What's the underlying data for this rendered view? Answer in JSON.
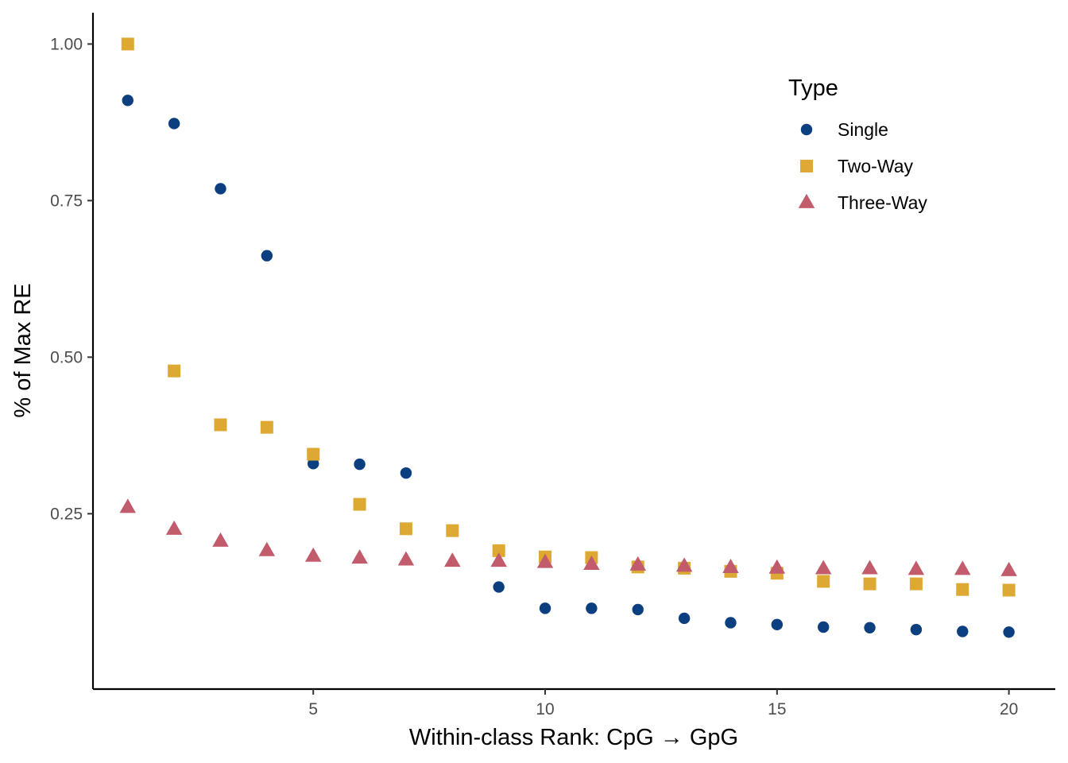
{
  "chart_data": {
    "type": "scatter",
    "title": "",
    "xlabel": "Within-class Rank: CpG → GpG",
    "ylabel": "% of Max RE",
    "xlim": [
      0.25,
      21.0
    ],
    "ylim": [
      -0.03,
      1.05
    ],
    "xticks": [
      5,
      10,
      15,
      20
    ],
    "yticks": [
      0.25,
      0.5,
      0.75,
      1.0
    ],
    "ytick_labels": [
      "0.25",
      "0.50",
      "0.75",
      "1.00"
    ],
    "grid": false,
    "legend": {
      "title": "Type",
      "position": "top-right"
    },
    "series": [
      {
        "name": "Single",
        "marker": "circle",
        "color": "#0b3f7f",
        "x": [
          1,
          2,
          3,
          4,
          5,
          6,
          7,
          9,
          10,
          11,
          12,
          13,
          14,
          15,
          16,
          17,
          18,
          19,
          20
        ],
        "y": [
          0.91,
          0.873,
          0.769,
          0.662,
          0.33,
          0.329,
          0.315,
          0.133,
          0.099,
          0.099,
          0.097,
          0.083,
          0.076,
          0.073,
          0.069,
          0.068,
          0.065,
          0.062,
          0.061
        ]
      },
      {
        "name": "Two-Way",
        "marker": "square",
        "color": "#dda933",
        "x": [
          1,
          2,
          3,
          4,
          5,
          6,
          7,
          8,
          9,
          10,
          11,
          12,
          13,
          14,
          15,
          16,
          17,
          18,
          19,
          20
        ],
        "y": [
          1.0,
          0.478,
          0.392,
          0.388,
          0.345,
          0.265,
          0.226,
          0.223,
          0.191,
          0.181,
          0.18,
          0.165,
          0.163,
          0.158,
          0.155,
          0.142,
          0.138,
          0.138,
          0.129,
          0.128
        ]
      },
      {
        "name": "Three-Way",
        "marker": "triangle",
        "color": "#c25b6b",
        "x": [
          1,
          2,
          3,
          4,
          5,
          6,
          7,
          8,
          9,
          10,
          11,
          12,
          13,
          14,
          15,
          16,
          17,
          18,
          19,
          20
        ],
        "y": [
          0.26,
          0.225,
          0.206,
          0.191,
          0.182,
          0.179,
          0.176,
          0.174,
          0.174,
          0.172,
          0.169,
          0.168,
          0.166,
          0.164,
          0.163,
          0.162,
          0.162,
          0.161,
          0.161,
          0.159
        ]
      }
    ]
  }
}
